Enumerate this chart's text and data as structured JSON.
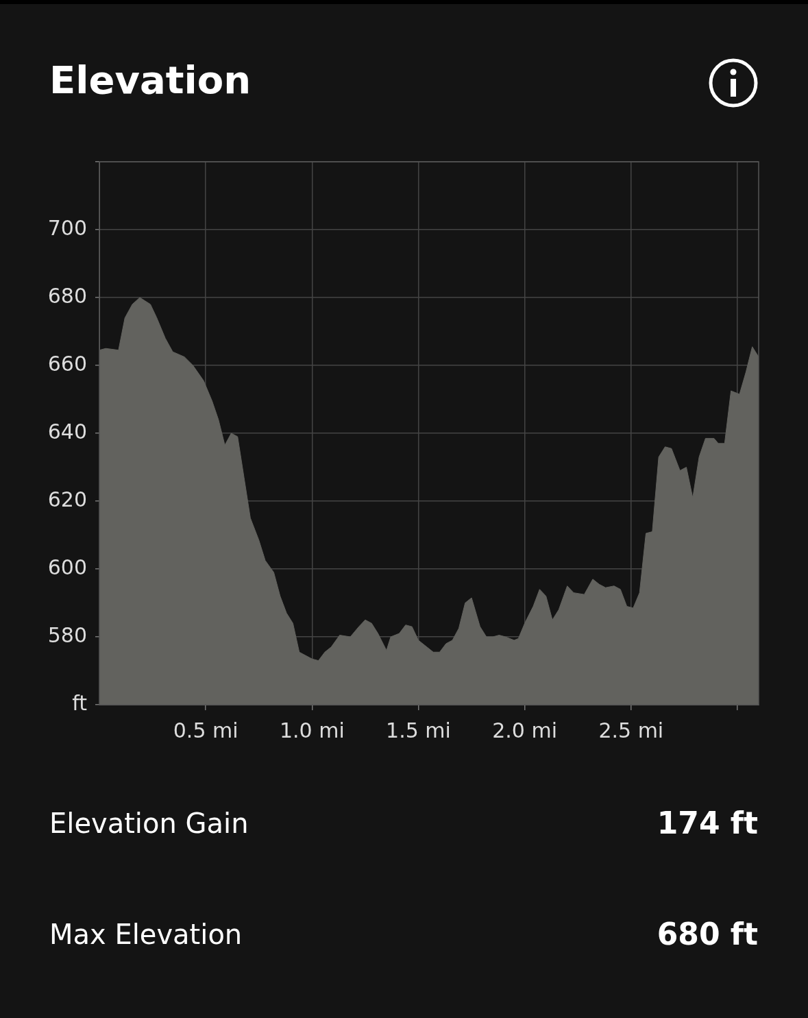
{
  "chart_data": {
    "type": "area",
    "title": "Elevation",
    "x": [
      0,
      0.03,
      0.09,
      0.12,
      0.155,
      0.19,
      0.24,
      0.27,
      0.31,
      0.345,
      0.4,
      0.44,
      0.49,
      0.53,
      0.56,
      0.59,
      0.62,
      0.65,
      0.68,
      0.71,
      0.75,
      0.78,
      0.82,
      0.85,
      0.88,
      0.91,
      0.94,
      1.0,
      1.03,
      1.06,
      1.09,
      1.13,
      1.18,
      1.22,
      1.25,
      1.28,
      1.31,
      1.35,
      1.37,
      1.41,
      1.44,
      1.47,
      1.5,
      1.54,
      1.57,
      1.6,
      1.63,
      1.66,
      1.69,
      1.72,
      1.75,
      1.79,
      1.82,
      1.85,
      1.88,
      1.91,
      1.95,
      1.97,
      2.0,
      2.04,
      2.07,
      2.1,
      2.13,
      2.16,
      2.2,
      2.23,
      2.28,
      2.32,
      2.35,
      2.38,
      2.42,
      2.45,
      2.48,
      2.51,
      2.54,
      2.57,
      2.6,
      2.63,
      2.66,
      2.69,
      2.73,
      2.76,
      2.79,
      2.82,
      2.85,
      2.89,
      2.91,
      2.94,
      2.97,
      3.01,
      3.04,
      3.07,
      3.1
    ],
    "values": [
      664.5,
      665,
      664.5,
      674,
      678,
      680,
      678,
      674,
      668,
      664,
      662.5,
      660,
      655.5,
      649.5,
      644,
      636.5,
      640,
      639,
      627,
      615,
      608.5,
      602.5,
      599,
      592,
      587,
      584,
      575.5,
      573.5,
      573,
      575.5,
      577,
      580.5,
      580,
      583,
      585,
      584,
      581,
      576,
      580,
      581,
      583.5,
      583,
      579,
      577,
      575.5,
      575.5,
      578,
      579,
      582.5,
      590,
      591.5,
      583,
      580,
      580,
      580.5,
      580,
      579,
      579.5,
      584,
      589,
      594,
      592,
      585,
      588,
      595,
      593,
      592.5,
      597,
      595.5,
      594.5,
      595,
      594,
      589,
      588.5,
      593,
      610.5,
      611,
      633,
      636,
      635.5,
      629,
      630,
      621,
      633,
      638.5,
      638.5,
      637,
      637,
      652.5,
      651.5,
      658,
      665.5,
      662.5
    ],
    "color": "#62625e",
    "xlim": [
      0,
      3.1
    ],
    "xticks": [
      {
        "value": 0.5,
        "label": "0.5 mi"
      },
      {
        "value": 1.0,
        "label": "1.0 mi"
      },
      {
        "value": 1.5,
        "label": "1.5 mi"
      },
      {
        "value": 2.0,
        "label": "2.0 mi"
      },
      {
        "value": 2.5,
        "label": "2.5 mi"
      },
      {
        "value": 3.0,
        "label": null
      }
    ],
    "ylim": [
      560,
      720
    ],
    "yticks": [
      {
        "value": 560,
        "label": "ft"
      },
      580,
      600,
      620,
      640,
      660,
      680,
      700,
      {
        "value": 720,
        "label": null
      }
    ],
    "grid": true,
    "annotations": [
      "Elevation Gain",
      "174 ft",
      "Max Elevation",
      "680 ft"
    ]
  }
}
